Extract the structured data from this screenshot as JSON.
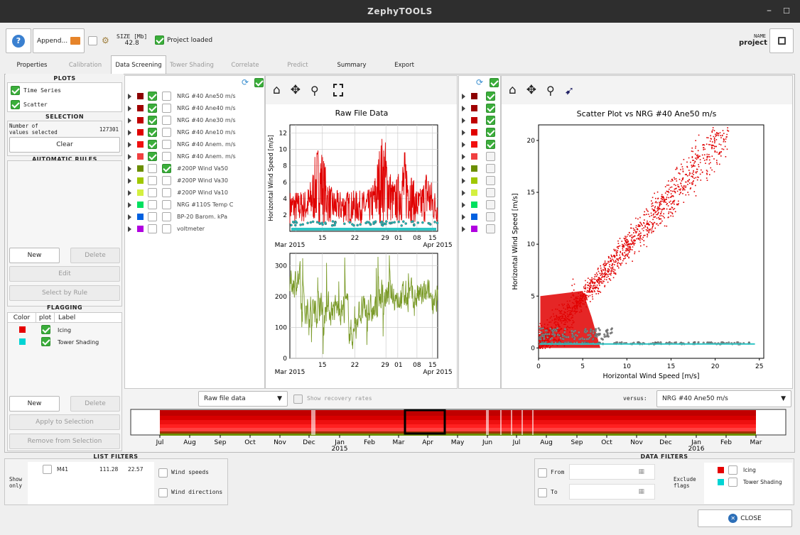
{
  "window": {
    "title": "ZephyTOOLS"
  },
  "toolbar": {
    "append_label": "Append...",
    "size_label": "SIZE [Mb]",
    "size_value": "42.8",
    "project_loaded": "Project loaded",
    "name_label": "NAME",
    "name_value": "project"
  },
  "tabs": [
    {
      "label": "Properties"
    },
    {
      "label": "Calibration"
    },
    {
      "label": "Data Screening"
    },
    {
      "label": "Tower Shading"
    },
    {
      "label": "Correlate"
    },
    {
      "label": "Predict"
    },
    {
      "label": "Summary"
    },
    {
      "label": "Export"
    }
  ],
  "plots": {
    "header": "PLOTS",
    "time_series": "Time Series",
    "scatter": "Scatter"
  },
  "selection": {
    "header": "SELECTION",
    "count_label1": "Number of",
    "count_label2": "values selected",
    "count_value": "127301",
    "clear": "Clear"
  },
  "rules": {
    "header": "AUTOMATIC RULES",
    "new": "New",
    "delete": "Delete",
    "edit": "Edit",
    "select_by_rule": "Select by Rule"
  },
  "flagging": {
    "header": "FLAGGING",
    "col_color": "Color",
    "col_plot": "plot",
    "col_label": "Label",
    "rows": [
      {
        "label": "Icing",
        "color": "#e60000"
      },
      {
        "label": "Tower Shading",
        "color": "#00d4d4"
      }
    ],
    "new": "New",
    "delete": "Delete",
    "apply": "Apply to Selection",
    "remove": "Remove from Selection"
  },
  "signals": [
    {
      "label": "NRG #40 Ane50 m/s",
      "color": "#8b0000"
    },
    {
      "label": "NRG #40 Ane40 m/s",
      "color": "#a00000"
    },
    {
      "label": "NRG #40 Ane30 m/s",
      "color": "#c00000"
    },
    {
      "label": "NRG #40 Ane10 m/s",
      "color": "#e00000"
    },
    {
      "label": "NRG #40 Anem. m/s",
      "color": "#f01010"
    },
    {
      "label": "NRG #40 Anem. m/s",
      "color": "#f04040"
    },
    {
      "label": "#200P Wind Va50",
      "color": "#6b8e00"
    },
    {
      "label": "#200P Wind Va30",
      "color": "#a0c800"
    },
    {
      "label": "#200P Wind Va10",
      "color": "#d4f040"
    },
    {
      "label": "NRG #110S Temp  C",
      "color": "#00e060"
    },
    {
      "label": "BP-20 Barom. kPa",
      "color": "#0060e0"
    },
    {
      "label": "voltmeter",
      "color": "#b000e0"
    }
  ],
  "ts_chart": {
    "chart_data": {
      "type": "line",
      "title": "Raw File Data",
      "top": {
        "ylabel": "Horizontal Wind Speed [m/s]",
        "ylim": [
          0,
          13
        ],
        "yticks": [
          2,
          4,
          6,
          8,
          10,
          12
        ]
      },
      "bottom": {
        "ylabel": "",
        "ylim": [
          0,
          340
        ],
        "yticks": [
          0,
          100,
          200,
          300
        ]
      },
      "xticks": [
        "Mar 2015",
        "15",
        "22",
        "29",
        "01",
        "08",
        "15",
        "Apr 2015"
      ]
    }
  },
  "scatter_chart": {
    "chart_data": {
      "type": "scatter",
      "title": "Scatter Plot vs NRG #40 Ane50 m/s",
      "xlabel": "Horizontal Wind Speed [m/s]",
      "ylabel": "Horizontal Wind Speed [m/s]",
      "xlim": [
        0,
        25.5
      ],
      "ylim": [
        -1,
        21.5
      ],
      "xticks": [
        0,
        5,
        10,
        15,
        20,
        25
      ],
      "yticks": [
        0,
        5,
        10,
        15,
        20
      ]
    }
  },
  "controls": {
    "source": "Raw file data",
    "recovery": "Show recovery rates",
    "versus_label": "versus:",
    "versus_value": "NRG #40 Ane50 m/s"
  },
  "timeline": {
    "months": [
      "Jul",
      "Aug",
      "Sep",
      "Oct",
      "Nov",
      "Dec",
      "Jan",
      "Feb",
      "Mar",
      "Apr",
      "May",
      "Jun",
      "Jul",
      "Aug",
      "Sep",
      "Oct",
      "Nov",
      "Dec",
      "Jan",
      "Feb",
      "Mar"
    ],
    "year1": "2015",
    "year2": "2016"
  },
  "list_filters": {
    "header": "LIST FILTERS",
    "show_only": "Show only",
    "row": {
      "name": "M41",
      "v1": "111.28",
      "v2": "22.57"
    },
    "wind_speeds": "Wind speeds",
    "wind_directions": "Wind directions"
  },
  "data_filters": {
    "header": "DATA FILTERS",
    "from": "From",
    "to": "To",
    "exclude": "Exclude flags",
    "icing": "Icing",
    "tower": "Tower Shading"
  },
  "close_label": "CLOSE"
}
